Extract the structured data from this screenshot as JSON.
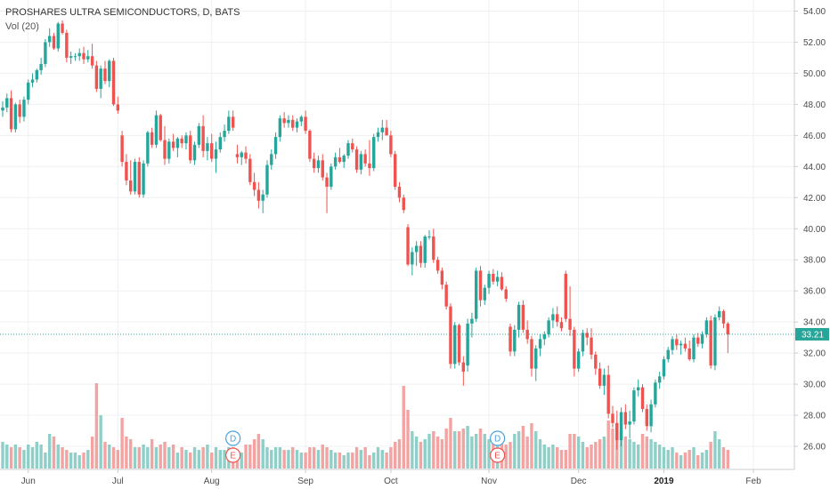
{
  "chart_data": {
    "type": "candlestick",
    "title": "PROSHARES ULTRA SEMICONDUCTORS, D, BATS",
    "indicator": "Vol (20)",
    "ylim": [
      24.8,
      54.6
    ],
    "yticks": [
      "54.00",
      "52.00",
      "50.00",
      "48.00",
      "46.00",
      "44.00",
      "42.00",
      "40.00",
      "38.00",
      "36.00",
      "34.00",
      "32.00",
      "30.00",
      "28.00",
      "26.00"
    ],
    "xticks": [
      {
        "label": "Jun",
        "i": 6
      },
      {
        "label": "Jul",
        "i": 27
      },
      {
        "label": "Aug",
        "i": 49
      },
      {
        "label": "Sep",
        "i": 71
      },
      {
        "label": "Oct",
        "i": 91
      },
      {
        "label": "Nov",
        "i": 114
      },
      {
        "label": "Dec",
        "i": 135
      },
      {
        "label": "2019",
        "i": 155,
        "bold": true
      },
      {
        "label": "Feb",
        "i": 176
      }
    ],
    "last_price": 33.21,
    "last_price_label": "33.21",
    "colors": {
      "up": "#26a69a",
      "down": "#ef5350",
      "up_vol": "#8fcfc7",
      "down_vol": "#f3a3a1",
      "last_line": "#26a69a",
      "grid": "#eef0f3",
      "axis_text": "#4a4a4a"
    },
    "events": [
      {
        "label": "D",
        "i": 54,
        "color": "#4aa3df"
      },
      {
        "label": "E",
        "i": 54,
        "color": "#ef5350"
      },
      {
        "label": "D",
        "i": 116,
        "color": "#4aa3df"
      },
      {
        "label": "E",
        "i": 116,
        "color": "#ef5350"
      }
    ],
    "candles": [
      [
        47.6,
        48.2,
        47.2,
        47.8,
        1.0
      ],
      [
        47.8,
        48.7,
        47.5,
        48.4,
        0.9
      ],
      [
        48.4,
        48.9,
        46.2,
        46.4,
        0.8
      ],
      [
        46.4,
        48.1,
        46.2,
        48.0,
        0.9
      ],
      [
        48.0,
        48.3,
        46.8,
        47.2,
        0.8
      ],
      [
        47.2,
        48.5,
        46.9,
        48.3,
        0.7
      ],
      [
        48.3,
        49.6,
        48.0,
        49.4,
        0.9
      ],
      [
        49.4,
        50.0,
        49.1,
        49.6,
        0.8
      ],
      [
        49.6,
        50.3,
        49.4,
        50.2,
        1.0
      ],
      [
        50.2,
        51.0,
        49.9,
        50.6,
        0.9
      ],
      [
        50.6,
        52.2,
        50.4,
        52.0,
        0.6
      ],
      [
        52.0,
        52.9,
        51.7,
        52.4,
        1.3
      ],
      [
        52.4,
        52.6,
        51.5,
        51.6,
        1.2
      ],
      [
        51.6,
        53.3,
        51.4,
        53.2,
        0.9
      ],
      [
        53.2,
        53.4,
        52.5,
        52.6,
        0.8
      ],
      [
        52.6,
        52.8,
        50.7,
        51.0,
        0.7
      ],
      [
        51.0,
        51.4,
        50.6,
        51.1,
        0.6
      ],
      [
        51.1,
        51.3,
        50.8,
        51.1,
        0.6
      ],
      [
        51.1,
        51.6,
        50.8,
        51.3,
        0.5
      ],
      [
        51.3,
        51.7,
        50.6,
        50.9,
        0.6
      ],
      [
        50.9,
        51.5,
        50.7,
        51.1,
        0.7
      ],
      [
        51.1,
        51.9,
        50.3,
        50.5,
        1.2
      ],
      [
        50.5,
        50.8,
        48.8,
        49.0,
        3.2
      ],
      [
        49.0,
        50.5,
        48.4,
        50.3,
        2.0
      ],
      [
        50.3,
        50.8,
        49.3,
        49.5,
        1.0
      ],
      [
        49.5,
        50.9,
        49.1,
        50.8,
        0.9
      ],
      [
        50.8,
        51.0,
        47.9,
        48.0,
        0.8
      ],
      [
        48.0,
        48.5,
        47.4,
        47.6,
        0.7
      ],
      [
        46.0,
        46.3,
        44.0,
        44.3,
        1.9
      ],
      [
        44.3,
        44.8,
        42.8,
        43.1,
        1.2
      ],
      [
        43.1,
        44.4,
        42.2,
        42.4,
        1.1
      ],
      [
        42.4,
        44.5,
        42.2,
        44.3,
        0.8
      ],
      [
        44.3,
        44.6,
        42.0,
        42.2,
        0.8
      ],
      [
        42.2,
        44.4,
        42.0,
        44.2,
        0.9
      ],
      [
        44.2,
        46.3,
        44.0,
        46.2,
        0.8
      ],
      [
        46.2,
        46.5,
        45.2,
        45.4,
        1.1
      ],
      [
        45.4,
        47.6,
        45.2,
        47.3,
        0.8
      ],
      [
        47.3,
        47.4,
        45.6,
        45.7,
        0.9
      ],
      [
        45.7,
        46.6,
        44.1,
        44.5,
        1.0
      ],
      [
        44.5,
        45.8,
        44.2,
        45.6,
        0.8
      ],
      [
        45.6,
        46.1,
        45.0,
        45.2,
        0.9
      ],
      [
        45.2,
        45.9,
        44.6,
        45.8,
        0.6
      ],
      [
        45.8,
        46.0,
        45.2,
        45.5,
        0.8
      ],
      [
        45.5,
        46.2,
        45.1,
        46.0,
        0.7
      ],
      [
        46.0,
        46.3,
        44.2,
        44.4,
        0.6
      ],
      [
        44.4,
        45.6,
        44.1,
        45.4,
        0.8
      ],
      [
        45.4,
        46.8,
        45.2,
        46.6,
        0.7
      ],
      [
        46.6,
        47.3,
        44.6,
        45.0,
        0.8
      ],
      [
        45.0,
        45.9,
        44.4,
        45.5,
        0.9
      ],
      [
        45.5,
        46.1,
        44.3,
        44.5,
        0.6
      ],
      [
        44.5,
        45.6,
        43.6,
        45.1,
        0.8
      ],
      [
        45.1,
        46.2,
        44.9,
        45.9,
        0.7
      ],
      [
        45.9,
        46.7,
        45.6,
        46.3,
        0.7
      ],
      [
        46.3,
        47.6,
        46.1,
        47.2,
        0.8
      ],
      [
        47.2,
        47.6,
        46.3,
        46.5,
        0.8
      ],
      [
        44.8,
        45.4,
        44.2,
        44.6,
        0.7
      ],
      [
        44.6,
        45.0,
        44.1,
        44.9,
        0.6
      ],
      [
        44.9,
        45.3,
        44.2,
        44.5,
        0.9
      ],
      [
        44.5,
        44.8,
        42.8,
        43.0,
        0.9
      ],
      [
        43.0,
        43.6,
        42.1,
        42.5,
        1.1
      ],
      [
        42.5,
        43.0,
        41.3,
        41.8,
        1.3
      ],
      [
        41.8,
        42.5,
        41.0,
        42.2,
        1.1
      ],
      [
        42.2,
        44.4,
        42.0,
        44.1,
        0.8
      ],
      [
        44.1,
        45.1,
        43.8,
        44.8,
        0.7
      ],
      [
        44.8,
        46.2,
        44.5,
        45.9,
        0.8
      ],
      [
        45.9,
        47.3,
        45.6,
        47.1,
        0.8
      ],
      [
        47.1,
        47.5,
        46.5,
        46.8,
        0.7
      ],
      [
        46.8,
        47.3,
        46.5,
        47.0,
        0.7
      ],
      [
        47.0,
        47.3,
        46.3,
        46.5,
        0.8
      ],
      [
        46.5,
        47.1,
        46.2,
        46.9,
        0.7
      ],
      [
        46.9,
        47.3,
        46.6,
        47.2,
        0.6
      ],
      [
        47.2,
        47.6,
        46.1,
        46.3,
        0.6
      ],
      [
        46.3,
        46.4,
        44.3,
        44.5,
        0.8
      ],
      [
        44.5,
        44.9,
        43.6,
        43.9,
        0.8
      ],
      [
        43.9,
        44.7,
        43.6,
        44.4,
        0.7
      ],
      [
        44.4,
        44.8,
        43.1,
        43.3,
        0.9
      ],
      [
        43.3,
        43.6,
        41.0,
        42.7,
        0.8
      ],
      [
        42.7,
        44.2,
        42.5,
        44.0,
        0.7
      ],
      [
        44.0,
        44.9,
        43.8,
        44.6,
        0.6
      ],
      [
        44.6,
        45.2,
        44.2,
        44.3,
        0.6
      ],
      [
        44.3,
        44.8,
        43.9,
        44.7,
        0.5
      ],
      [
        44.7,
        45.7,
        44.5,
        45.5,
        0.6
      ],
      [
        45.5,
        45.8,
        44.9,
        45.1,
        0.6
      ],
      [
        45.1,
        45.3,
        43.6,
        43.8,
        0.8
      ],
      [
        43.8,
        45.0,
        43.5,
        44.8,
        0.7
      ],
      [
        44.8,
        45.1,
        44.0,
        44.2,
        0.8
      ],
      [
        44.2,
        45.7,
        43.4,
        43.9,
        0.5
      ],
      [
        43.9,
        46.1,
        43.7,
        45.9,
        0.6
      ],
      [
        45.9,
        46.5,
        45.6,
        46.2,
        0.8
      ],
      [
        46.2,
        47.0,
        45.7,
        46.5,
        0.7
      ],
      [
        46.5,
        47.0,
        46.0,
        46.0,
        0.6
      ],
      [
        46.0,
        46.3,
        44.6,
        44.8,
        0.8
      ],
      [
        44.8,
        45.0,
        42.5,
        42.7,
        1.0
      ],
      [
        42.7,
        43.0,
        41.7,
        42.0,
        1.1
      ],
      [
        42.0,
        42.2,
        41.0,
        41.2,
        3.1
      ],
      [
        40.1,
        40.3,
        37.6,
        37.7,
        2.2
      ],
      [
        37.7,
        38.8,
        37.0,
        38.5,
        1.4
      ],
      [
        38.5,
        39.2,
        37.6,
        38.9,
        1.2
      ],
      [
        38.9,
        39.2,
        37.5,
        37.8,
        1.0
      ],
      [
        37.8,
        39.6,
        37.5,
        39.5,
        1.1
      ],
      [
        39.5,
        39.9,
        39.3,
        39.5,
        1.3
      ],
      [
        39.5,
        40.0,
        37.8,
        38.0,
        1.4
      ],
      [
        38.0,
        38.2,
        37.1,
        37.3,
        1.2
      ],
      [
        37.3,
        37.5,
        36.1,
        36.4,
        1.1
      ],
      [
        36.4,
        36.6,
        34.8,
        35.0,
        1.5
      ],
      [
        35.0,
        35.2,
        31.0,
        31.3,
        1.9
      ],
      [
        31.3,
        34.0,
        31.0,
        33.8,
        1.4
      ],
      [
        33.8,
        33.9,
        31.2,
        31.4,
        1.4
      ],
      [
        31.4,
        31.8,
        29.9,
        30.8,
        1.5
      ],
      [
        31.2,
        34.2,
        30.8,
        33.9,
        1.6
      ],
      [
        33.9,
        34.6,
        33.0,
        34.2,
        1.2
      ],
      [
        34.2,
        37.5,
        34.0,
        37.3,
        1.3
      ],
      [
        37.3,
        37.6,
        35.0,
        35.4,
        1.5
      ],
      [
        35.4,
        36.4,
        35.1,
        36.2,
        1.3
      ],
      [
        36.2,
        37.3,
        35.8,
        37.1,
        1.1
      ],
      [
        37.1,
        37.4,
        36.4,
        36.6,
        1.0
      ],
      [
        36.6,
        37.3,
        36.3,
        36.9,
        0.9
      ],
      [
        36.9,
        37.2,
        36.0,
        36.1,
        1.0
      ],
      [
        36.1,
        36.3,
        35.3,
        35.5,
        0.9
      ],
      [
        33.7,
        33.9,
        31.8,
        32.1,
        1.0
      ],
      [
        32.1,
        33.8,
        31.8,
        33.5,
        1.3
      ],
      [
        33.5,
        35.3,
        33.0,
        35.1,
        1.4
      ],
      [
        35.1,
        35.4,
        33.3,
        33.5,
        1.6
      ],
      [
        33.5,
        34.1,
        32.6,
        32.9,
        1.2
      ],
      [
        32.9,
        33.1,
        30.5,
        31.0,
        1.7
      ],
      [
        31.0,
        32.5,
        30.2,
        32.3,
        1.4
      ],
      [
        32.3,
        33.2,
        31.8,
        32.9,
        1.1
      ],
      [
        32.9,
        33.4,
        32.5,
        33.2,
        0.9
      ],
      [
        33.2,
        34.3,
        33.0,
        34.1,
        0.8
      ],
      [
        34.1,
        34.9,
        33.6,
        34.5,
        0.9
      ],
      [
        34.5,
        35.0,
        33.7,
        34.0,
        0.8
      ],
      [
        34.0,
        34.3,
        33.4,
        33.6,
        0.7
      ],
      [
        37.1,
        37.3,
        34.0,
        34.2,
        0.7
      ],
      [
        34.2,
        36.3,
        33.1,
        33.5,
        1.3
      ],
      [
        33.5,
        33.7,
        30.5,
        31.0,
        1.3
      ],
      [
        31.0,
        32.3,
        30.8,
        32.1,
        1.2
      ],
      [
        32.1,
        33.5,
        31.8,
        33.3,
        1.0
      ],
      [
        33.3,
        33.6,
        32.5,
        33.0,
        0.8
      ],
      [
        33.0,
        33.6,
        31.6,
        31.9,
        0.9
      ],
      [
        31.9,
        32.1,
        30.6,
        31.0,
        1.0
      ],
      [
        31.0,
        31.4,
        29.7,
        29.9,
        1.1
      ],
      [
        29.9,
        31.0,
        29.3,
        30.6,
        1.2
      ],
      [
        30.6,
        31.2,
        27.8,
        28.1,
        1.8
      ],
      [
        28.1,
        28.6,
        27.2,
        27.5,
        1.5
      ],
      [
        27.5,
        28.3,
        25.8,
        26.4,
        1.7
      ],
      [
        26.4,
        28.5,
        26.0,
        28.2,
        1.4
      ],
      [
        28.2,
        28.7,
        27.1,
        27.4,
        1.2
      ],
      [
        27.4,
        28.3,
        26.5,
        27.6,
        1.1
      ],
      [
        27.6,
        29.8,
        27.4,
        29.6,
        1.0
      ],
      [
        29.6,
        30.3,
        29.2,
        29.8,
        0.9
      ],
      [
        29.8,
        30.0,
        28.2,
        28.4,
        1.3
      ],
      [
        28.4,
        28.7,
        27.0,
        27.3,
        1.2
      ],
      [
        27.3,
        29.0,
        26.9,
        28.7,
        1.1
      ],
      [
        28.7,
        30.3,
        28.5,
        30.1,
        1.0
      ],
      [
        30.1,
        30.8,
        29.7,
        30.5,
        0.9
      ],
      [
        30.5,
        31.8,
        30.3,
        31.6,
        0.8
      ],
      [
        31.6,
        32.4,
        31.4,
        32.2,
        0.7
      ],
      [
        32.2,
        33.1,
        31.9,
        32.9,
        0.8
      ],
      [
        32.9,
        33.2,
        32.2,
        32.5,
        0.6
      ],
      [
        32.5,
        32.8,
        31.9,
        32.6,
        0.5
      ],
      [
        32.6,
        33.0,
        32.1,
        32.3,
        0.6
      ],
      [
        32.3,
        32.8,
        31.5,
        31.6,
        0.7
      ],
      [
        31.6,
        33.2,
        31.4,
        33.0,
        0.8
      ],
      [
        33.0,
        33.3,
        32.4,
        32.6,
        0.5
      ],
      [
        32.6,
        33.4,
        32.3,
        33.2,
        0.6
      ],
      [
        33.2,
        34.3,
        33.0,
        34.1,
        0.7
      ],
      [
        34.1,
        34.4,
        31.0,
        31.2,
        1.0
      ],
      [
        31.2,
        34.5,
        30.9,
        34.3,
        1.4
      ],
      [
        34.3,
        35.0,
        34.1,
        34.7,
        1.1
      ],
      [
        34.7,
        34.8,
        33.6,
        33.9,
        0.8
      ],
      [
        33.9,
        34.0,
        32.0,
        33.2,
        0.7
      ]
    ]
  }
}
